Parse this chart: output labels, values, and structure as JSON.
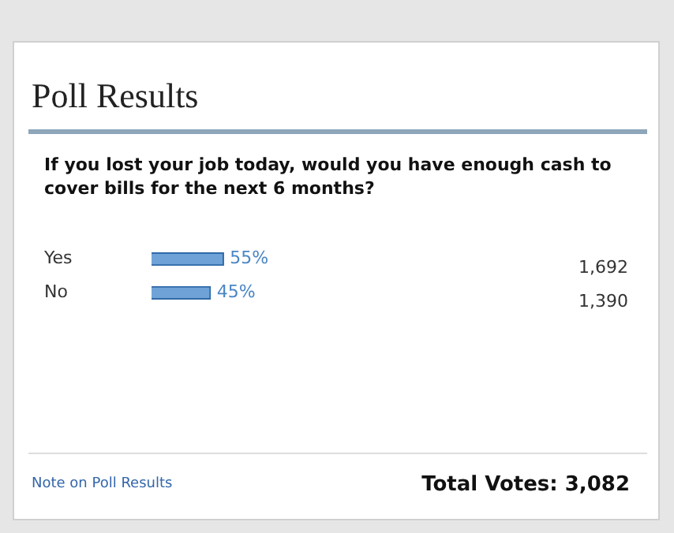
{
  "chart_data": {
    "type": "bar",
    "orientation": "horizontal",
    "title": "Poll Results",
    "subtitle": "If you lost your job today, would you have enough cash to cover bills for the next 6 months?",
    "categories": [
      "Yes",
      "No"
    ],
    "values": [
      55,
      45
    ],
    "value_labels": [
      "55%",
      "45%"
    ],
    "color": "#6fa3d8",
    "annotations": [
      "1,692",
      "1,390",
      "Note on Poll Results",
      "Total Votes: 3,082"
    ],
    "grid": false,
    "legend": false
  }
}
